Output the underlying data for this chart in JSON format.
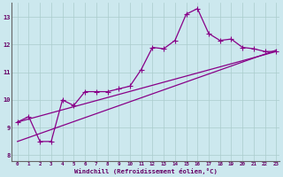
{
  "xlabel": "Windchill (Refroidissement éolien,°C)",
  "bg_color": "#cce8ee",
  "line_color": "#880088",
  "grid_color": "#aacccc",
  "xmin": -0.5,
  "xmax": 23.3,
  "ymin": 7.8,
  "ymax": 13.5,
  "yticks": [
    8,
    9,
    10,
    11,
    12,
    13
  ],
  "xticks": [
    0,
    1,
    2,
    3,
    4,
    5,
    6,
    7,
    8,
    9,
    10,
    11,
    12,
    13,
    14,
    15,
    16,
    17,
    18,
    19,
    20,
    21,
    22,
    23
  ],
  "line1_x": [
    0,
    1,
    2,
    3,
    4,
    5,
    6,
    7,
    8,
    9,
    10,
    11,
    12,
    13,
    14,
    15,
    16,
    17,
    18,
    19,
    20,
    21,
    22,
    23
  ],
  "line1_y": [
    9.2,
    9.4,
    8.5,
    8.5,
    10.0,
    9.8,
    10.3,
    10.3,
    10.3,
    10.4,
    10.5,
    11.1,
    11.9,
    11.85,
    12.15,
    13.1,
    13.3,
    12.4,
    12.15,
    12.2,
    11.9,
    11.85,
    11.75,
    11.75
  ],
  "line2_x": [
    0,
    23
  ],
  "line2_y": [
    8.5,
    11.8
  ],
  "line3_x": [
    0,
    23
  ],
  "line3_y": [
    9.2,
    11.75
  ]
}
